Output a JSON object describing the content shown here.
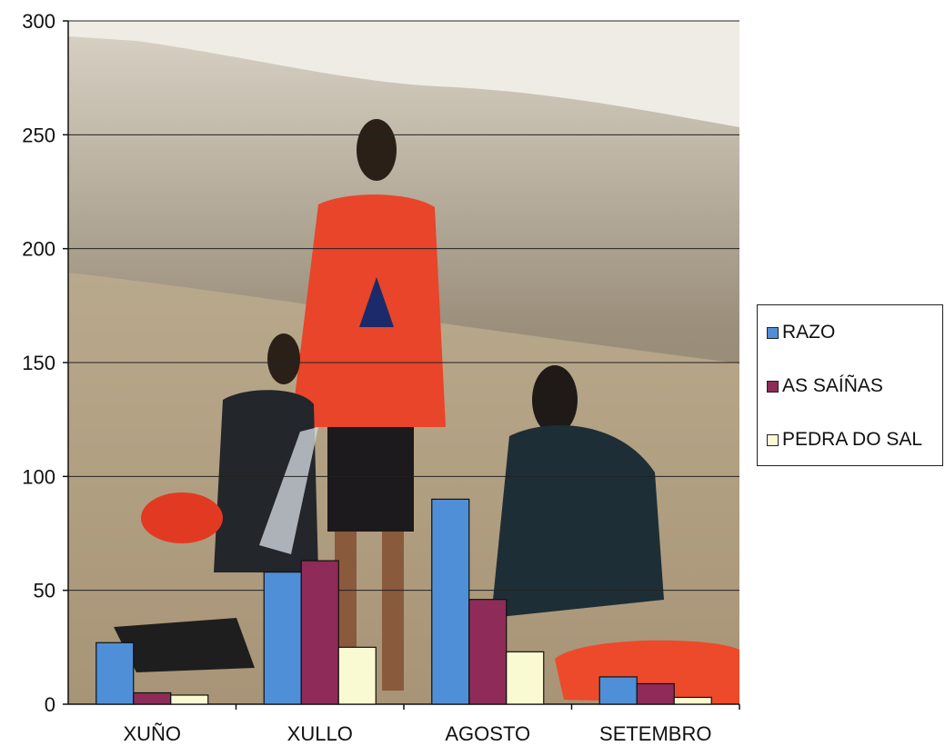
{
  "chart_data": {
    "type": "bar",
    "title": "",
    "xlabel": "",
    "ylabel": "",
    "ylim": [
      0,
      300
    ],
    "yticks": [
      0,
      50,
      100,
      150,
      200,
      250,
      300
    ],
    "categories": [
      "XUÑO",
      "XULLO",
      "AGOSTO",
      "SETEMBRO"
    ],
    "series": [
      {
        "name": "RAZO",
        "color": "#4f8fd8",
        "values": [
          27,
          58,
          90,
          12
        ]
      },
      {
        "name": "AS SAÍÑAS",
        "color": "#8e2b58",
        "values": [
          5,
          63,
          46,
          9
        ]
      },
      {
        "name": "PEDRA DO SAL",
        "color": "#fafad2",
        "values": [
          4,
          25,
          23,
          3
        ]
      }
    ],
    "grid": true,
    "legend": "right",
    "background": "photo of lifeguards on a beach"
  }
}
